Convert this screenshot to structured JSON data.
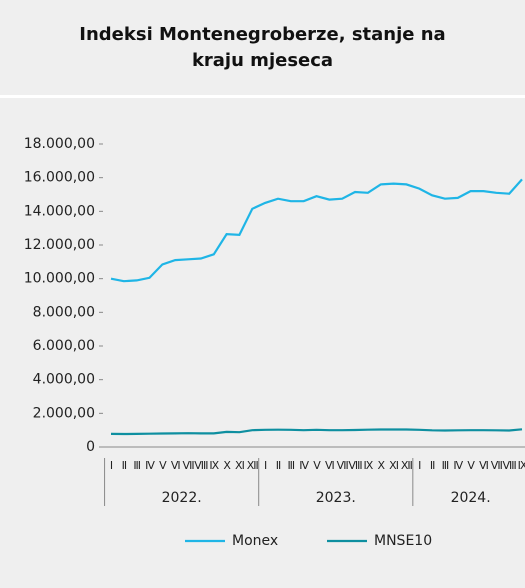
{
  "chart_data": {
    "type": "line",
    "title": "Indeksi Montenegroberze, stanje na kraju mjeseca",
    "categories": [
      "I",
      "II",
      "III",
      "IV",
      "V",
      "VI",
      "VII",
      "VIII",
      "IX",
      "X",
      "XI",
      "XII",
      "I",
      "II",
      "III",
      "IV",
      "V",
      "VI",
      "VII",
      "VIII",
      "IX",
      "X",
      "XI",
      "XII",
      "I",
      "II",
      "III",
      "IV",
      "V",
      "VI",
      "VII",
      "VIII",
      "IX"
    ],
    "groups": [
      {
        "label": "2022.",
        "count": 12
      },
      {
        "label": "2023.",
        "count": 12
      },
      {
        "label": "2024.",
        "count": 9
      }
    ],
    "series": [
      {
        "name": "Monex",
        "color": "#1fb5e6",
        "values": [
          10000,
          9850,
          9900,
          10050,
          10850,
          11100,
          11150,
          11200,
          11450,
          12650,
          12600,
          14150,
          14500,
          14750,
          14600,
          14600,
          14900,
          14700,
          14750,
          15150,
          15100,
          15600,
          15650,
          15600,
          15350,
          14950,
          14750,
          14800,
          15200,
          15200,
          15100,
          15050,
          15900
        ]
      },
      {
        "name": "MNSE10",
        "color": "#0e8fa0",
        "values": [
          780,
          770,
          780,
          790,
          800,
          810,
          820,
          810,
          810,
          900,
          880,
          1000,
          1020,
          1030,
          1020,
          1000,
          1020,
          1000,
          1000,
          1010,
          1030,
          1040,
          1040,
          1040,
          1020,
          990,
          980,
          990,
          1000,
          1000,
          990,
          980,
          1050
        ]
      }
    ],
    "ylim": [
      0,
      18000
    ],
    "yticks": [
      0,
      {
        "value": 2000,
        "label": "2.000,00"
      },
      {
        "value": 4000,
        "label": "4.000,00"
      },
      {
        "value": 6000,
        "label": "6.000,00"
      },
      {
        "value": 8000,
        "label": "8.000,00"
      },
      {
        "value": 10000,
        "label": "10.000,00"
      },
      {
        "value": 12000,
        "label": "12.000,00"
      },
      {
        "value": 14000,
        "label": "14.000,00"
      },
      {
        "value": 16000,
        "label": "16.000,00"
      },
      {
        "value": 18000,
        "label": "18.000,00"
      }
    ]
  }
}
